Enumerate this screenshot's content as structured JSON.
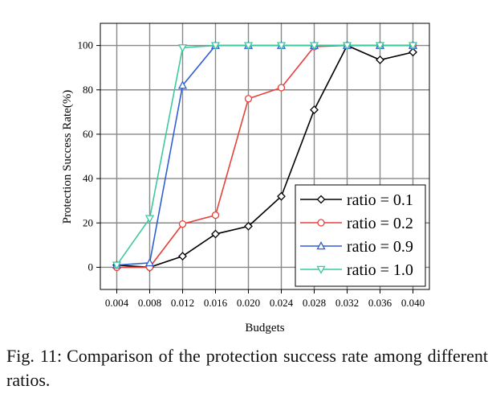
{
  "chart_data": {
    "type": "line",
    "xlabel": "Budgets",
    "ylabel": "Protection Success Rate(%)",
    "x": [
      0.004,
      0.008,
      0.012,
      0.016,
      0.02,
      0.024,
      0.028,
      0.032,
      0.036,
      0.04
    ],
    "x_tick_labels": [
      "0.004",
      "0.008",
      "0.012",
      "0.016",
      "0.020",
      "0.024",
      "0.028",
      "0.032",
      "0.036",
      "0.040"
    ],
    "ylim": [
      -10,
      110
    ],
    "y_ticks": [
      0,
      20,
      40,
      60,
      80,
      100
    ],
    "y_tick_labels": [
      "0",
      "20",
      "40",
      "60",
      "80",
      "100"
    ],
    "grid": true,
    "legend_position": "bottom-right",
    "series": [
      {
        "name": "ratio = 0.1",
        "color": "#000000",
        "marker": "diamond",
        "values": [
          1,
          0,
          5,
          15,
          18.5,
          32,
          71,
          100,
          93.5,
          97
        ]
      },
      {
        "name": "ratio = 0.2",
        "color": "#e8403a",
        "marker": "circle",
        "values": [
          0,
          0,
          19.5,
          23.5,
          76,
          81,
          99.5,
          100,
          100,
          100
        ]
      },
      {
        "name": "ratio = 0.9",
        "color": "#2f5fd7",
        "marker": "triangle-up",
        "values": [
          1,
          2,
          82,
          100,
          100,
          100,
          100,
          100,
          100,
          100
        ]
      },
      {
        "name": "ratio = 1.0",
        "color": "#3cc9a0",
        "marker": "triangle-down",
        "values": [
          1,
          22,
          99,
          100,
          100,
          100,
          100,
          100,
          100,
          100
        ]
      }
    ]
  },
  "caption": {
    "label": "Fig. 11:",
    "text": "Comparison of the protection success rate among different ratios."
  }
}
